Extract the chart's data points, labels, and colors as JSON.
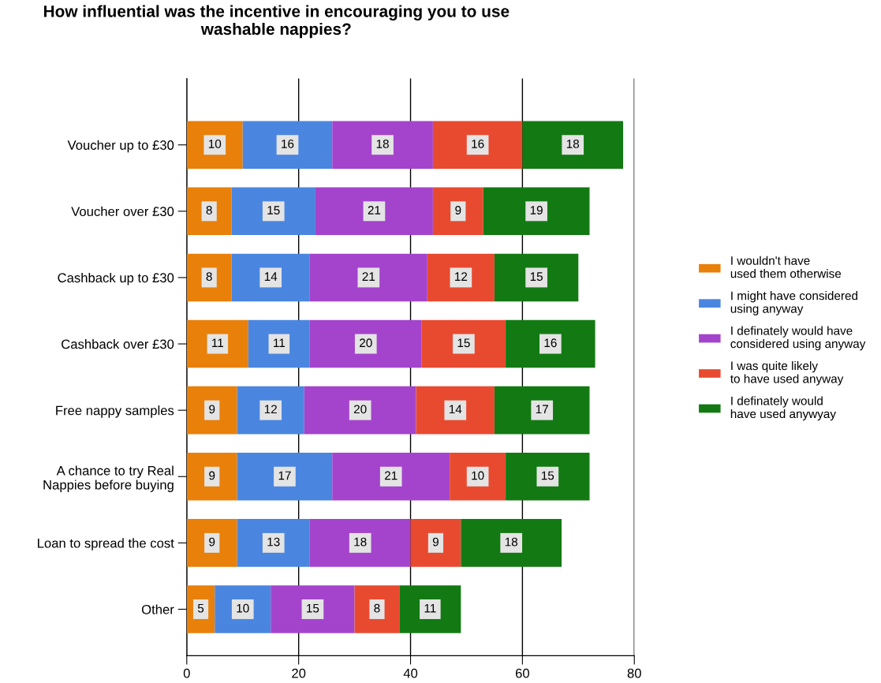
{
  "chart_data": {
    "type": "bar",
    "orientation": "horizontal",
    "stacked": true,
    "title": "How influential was the incentive in encouraging you to use\nwashable nappies?",
    "categories": [
      "Voucher up to £30",
      "Voucher over £30",
      "Cashback up to £30",
      "Cashback over £30",
      "Free nappy samples",
      "A chance to try Real\nNappies before buying",
      "Loan to spread the cost",
      "Other"
    ],
    "series": [
      {
        "name": "I wouldn't have\nused them otherwise",
        "color": "#e8800a",
        "values": [
          10,
          8,
          8,
          11,
          9,
          9,
          9,
          5
        ]
      },
      {
        "name": "I might have considered\nusing anyway",
        "color": "#4a86e0",
        "values": [
          16,
          15,
          14,
          11,
          12,
          17,
          13,
          10
        ]
      },
      {
        "name": "I definately would have\nconsidered using anyway",
        "color": "#a444cc",
        "values": [
          18,
          21,
          21,
          20,
          20,
          21,
          18,
          15
        ]
      },
      {
        "name": "I was quite likely\nto have used anyway",
        "color": "#e84a30",
        "values": [
          16,
          9,
          12,
          15,
          14,
          10,
          9,
          8
        ]
      },
      {
        "name": "I definately would\nhave used anywyay",
        "color": "#137a13",
        "values": [
          18,
          19,
          15,
          16,
          17,
          15,
          18,
          11
        ]
      }
    ],
    "xlim": [
      0,
      80
    ],
    "xticks": [
      0,
      20,
      40,
      60,
      80
    ],
    "grid": "x",
    "legend": "right",
    "data_labels": true
  }
}
